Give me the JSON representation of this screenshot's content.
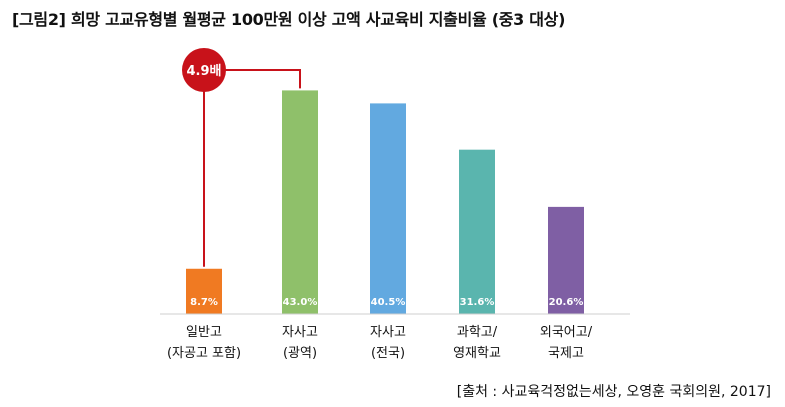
{
  "title": "[그림2] 희망 고교유형별 월평균 100만원 이상 고액 사교육비 지출비율 (중3 대상)",
  "source": "[출처 : 사교육걱정없는세상, 오영훈 국회의원, 2017]",
  "callout": "4.9배",
  "chart_data": {
    "type": "bar",
    "categories": [
      [
        "일반고",
        "(자공고 포함)"
      ],
      [
        "자사고",
        "(광역)"
      ],
      [
        "자사고",
        "(전국)"
      ],
      [
        "과학고/",
        "영재학교"
      ],
      [
        "외국어고/",
        "국제고"
      ]
    ],
    "values": [
      8.7,
      43.0,
      40.5,
      31.6,
      20.6
    ],
    "value_labels": [
      "8.7%",
      "43.0%",
      "40.5%",
      "31.6%",
      "20.6%"
    ],
    "colors": [
      "#f07a22",
      "#8fc06a",
      "#62a9e0",
      "#5ab5ae",
      "#7f5fa4"
    ],
    "callout_color": "#c8121a",
    "ylim": [
      0,
      45
    ],
    "grid": false,
    "legend": "none"
  }
}
